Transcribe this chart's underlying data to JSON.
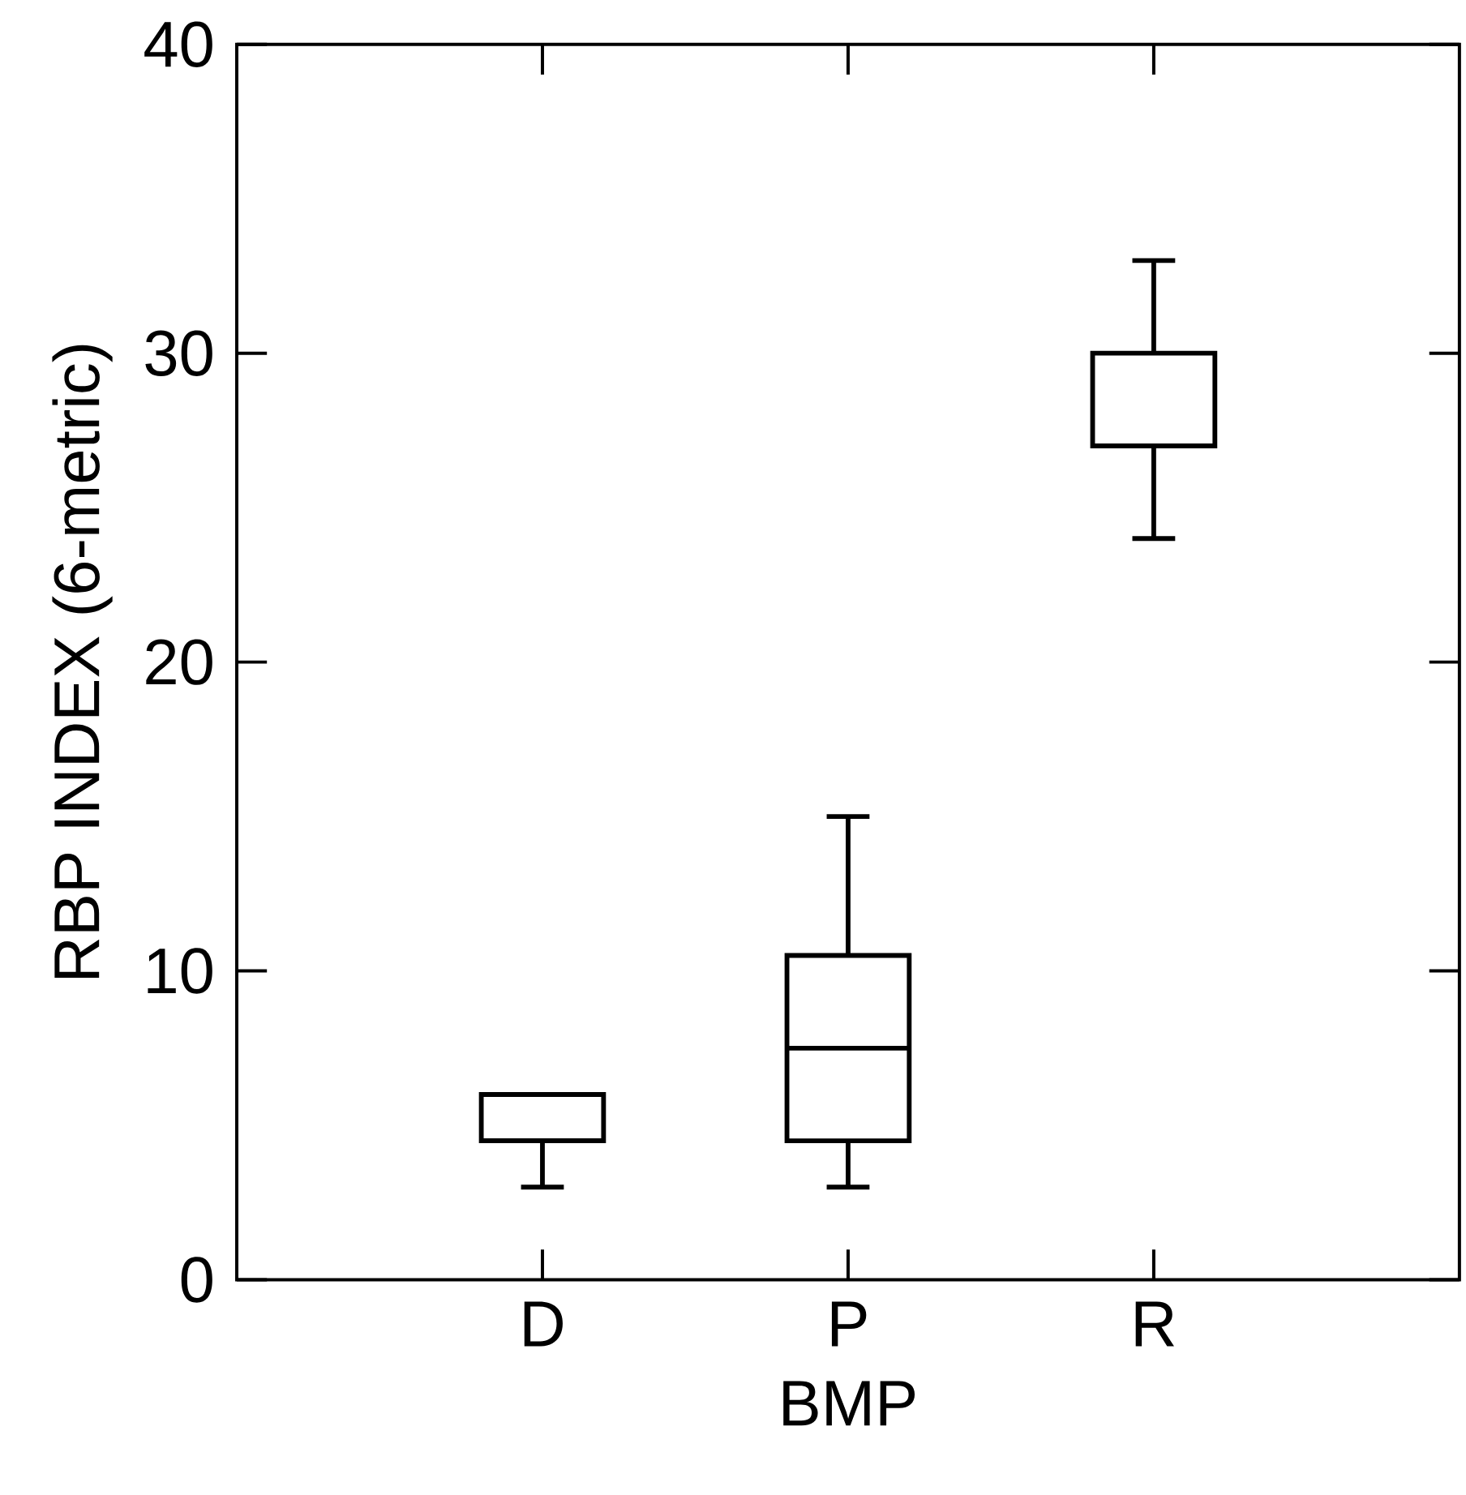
{
  "chart_data": {
    "type": "box",
    "xlabel": "BMP",
    "ylabel": "RBP INDEX (6-metric)",
    "categories": [
      "D",
      "P",
      "R"
    ],
    "boxes": [
      {
        "low": 3,
        "q1": 4.5,
        "median": 4.5,
        "q3": 6,
        "high": 6
      },
      {
        "low": 3,
        "q1": 4.5,
        "median": 7.5,
        "q3": 10.5,
        "high": 15
      },
      {
        "low": 24,
        "q1": 27,
        "median": 27,
        "q3": 30,
        "high": 33
      }
    ],
    "ylim": [
      0,
      40
    ],
    "yticks": [
      0,
      10,
      20,
      30,
      40
    ]
  }
}
